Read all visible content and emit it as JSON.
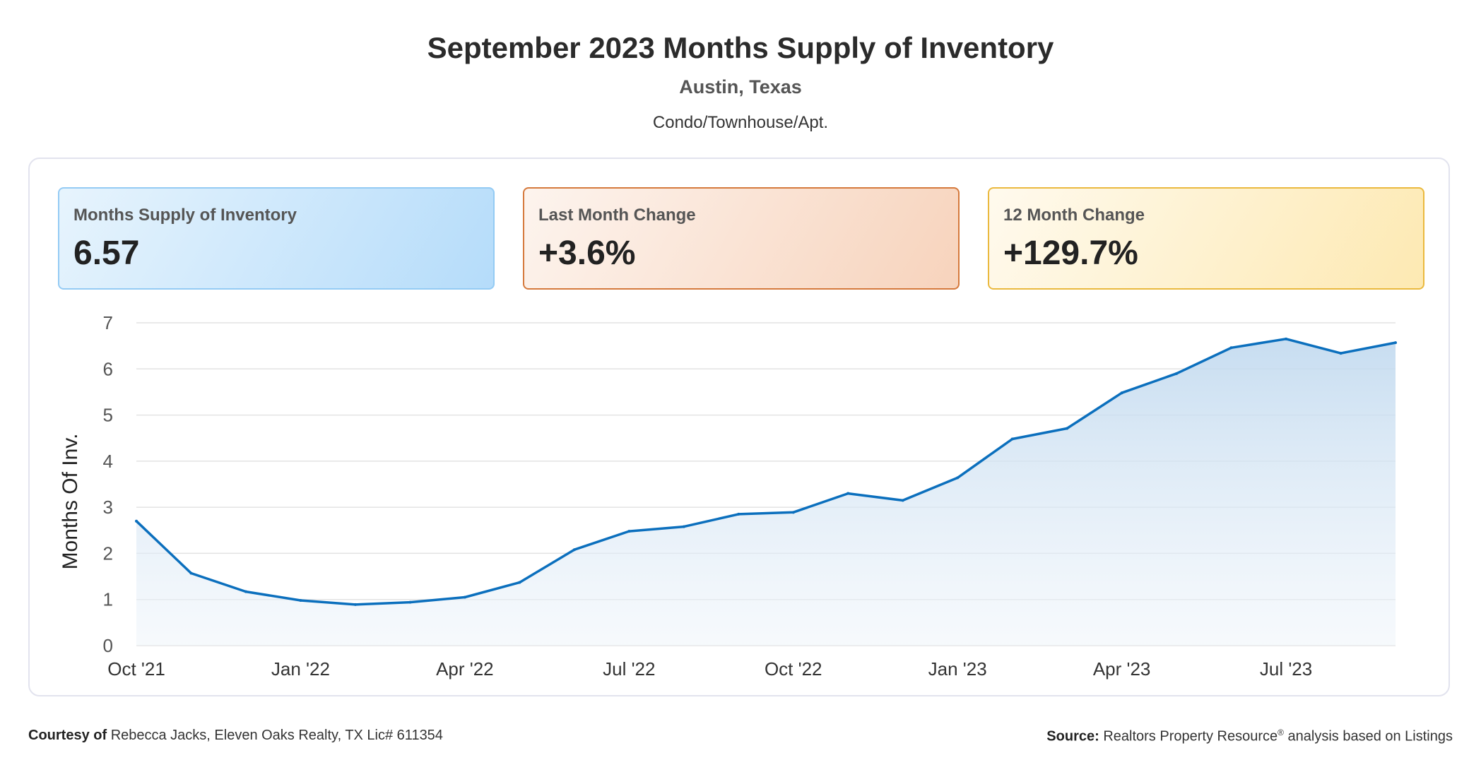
{
  "header": {
    "title": "September 2023 Months Supply of Inventory",
    "location": "Austin, Texas",
    "category": "Condo/Townhouse/Apt."
  },
  "stats": [
    {
      "label": "Months Supply of Inventory",
      "value": "6.57"
    },
    {
      "label": "Last Month Change",
      "value": "+3.6%"
    },
    {
      "label": "12 Month Change",
      "value": "+129.7%"
    }
  ],
  "colors": {
    "line": "#0b6fbd",
    "grid": "#e3e3e3"
  },
  "chart_data": {
    "type": "area",
    "title": "September 2023 Months Supply of Inventory",
    "xlabel": "",
    "ylabel": "Months Of Inv.",
    "ylim": [
      0,
      7
    ],
    "yticks": [
      0,
      1,
      2,
      3,
      4,
      5,
      6,
      7
    ],
    "x": [
      "Oct '21",
      "Nov '21",
      "Dec '21",
      "Jan '22",
      "Feb '22",
      "Mar '22",
      "Apr '22",
      "May '22",
      "Jun '22",
      "Jul '22",
      "Aug '22",
      "Sep '22",
      "Oct '22",
      "Nov '22",
      "Dec '22",
      "Jan '23",
      "Feb '23",
      "Mar '23",
      "Apr '23",
      "May '23",
      "Jun '23",
      "Jul '23",
      "Aug '23",
      "Sep '23"
    ],
    "xtick_labels": [
      "Oct '21",
      "Jan '22",
      "Apr '22",
      "Jul '22",
      "Oct '22",
      "Jan '23",
      "Apr '23",
      "Jul '23"
    ],
    "grid": true,
    "legend": false,
    "series": [
      {
        "values": [
          2.7,
          1.57,
          1.17,
          0.98,
          0.89,
          0.94,
          1.05,
          1.37,
          2.08,
          2.48,
          2.58,
          2.85,
          2.89,
          3.3,
          3.15,
          3.64,
          4.48,
          4.71,
          5.48,
          5.9,
          6.46,
          6.65,
          6.34,
          6.57
        ]
      }
    ]
  },
  "footer": {
    "courtesy_label": "Courtesy of",
    "courtesy_text": "Rebecca Jacks, Eleven Oaks Realty, TX Lic# 611354",
    "source_label": "Source:",
    "source_text": "Realtors Property Resource",
    "source_mark": "®",
    "source_suffix": "analysis based on Listings"
  }
}
